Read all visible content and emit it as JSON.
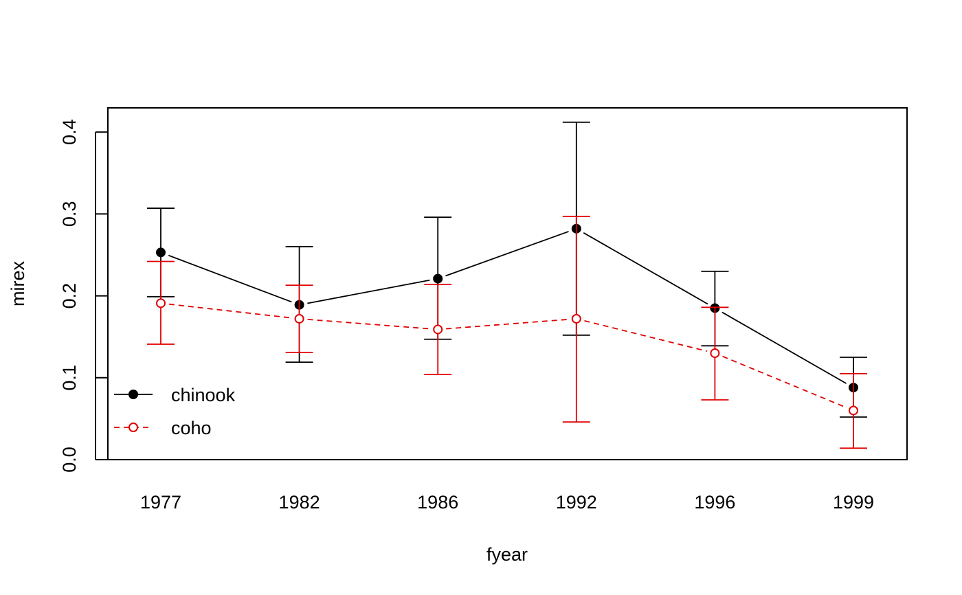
{
  "chart_data": {
    "type": "line",
    "title": "",
    "xlabel": "fyear",
    "ylabel": "mirex",
    "categories": [
      "1977",
      "1982",
      "1986",
      "1992",
      "1996",
      "1999"
    ],
    "ylim": [
      0.0,
      0.42
    ],
    "yticks": [
      0.0,
      0.1,
      0.2,
      0.3,
      0.4
    ],
    "ytick_labels": [
      "0.0",
      "0.1",
      "0.2",
      "0.3",
      "0.4"
    ],
    "grid": false,
    "legend": {
      "position": "bottom-left"
    },
    "series": [
      {
        "name": "chinook",
        "color": "#000000",
        "marker": "filled-circle",
        "line": "solid",
        "values": [
          0.253,
          0.189,
          0.221,
          0.282,
          0.185,
          0.088
        ],
        "lower": [
          0.199,
          0.119,
          0.147,
          0.152,
          0.139,
          0.052
        ],
        "upper": [
          0.307,
          0.26,
          0.296,
          0.412,
          0.23,
          0.125
        ]
      },
      {
        "name": "coho",
        "color": "#e00000",
        "marker": "open-circle",
        "line": "dashed",
        "values": [
          0.191,
          0.172,
          0.159,
          0.172,
          0.13,
          0.06
        ],
        "lower": [
          0.141,
          0.131,
          0.104,
          0.046,
          0.073,
          0.014
        ],
        "upper": [
          0.242,
          0.213,
          0.214,
          0.297,
          0.186,
          0.105
        ]
      }
    ]
  }
}
